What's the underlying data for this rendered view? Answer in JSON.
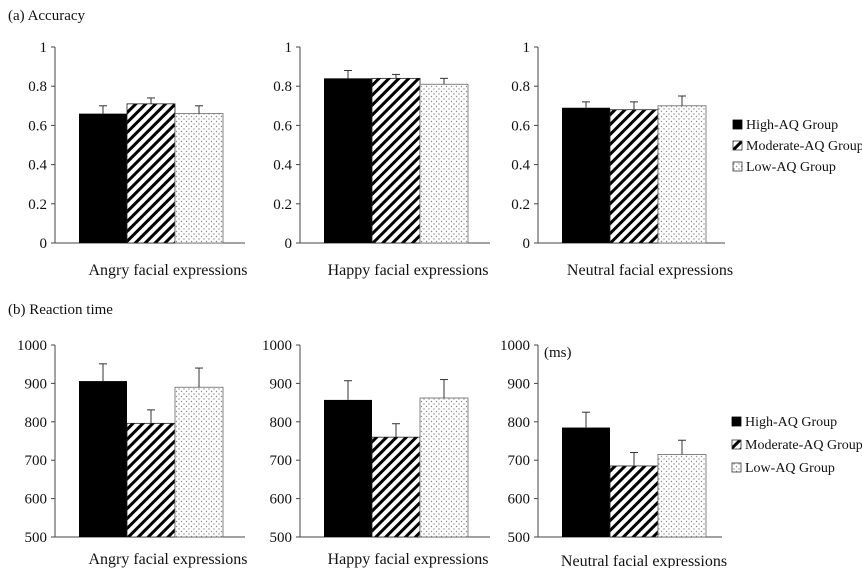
{
  "sections": {
    "accuracy_title": "(a) Accuracy",
    "rt_title": "(b) Reaction time"
  },
  "legend_items": [
    "High-AQ Group",
    "Moderate-AQ Group",
    "Low-AQ Group"
  ],
  "colors": {
    "high": "#000000",
    "moderate_stripe": "#000000",
    "low_dot": "#8a8a8a",
    "axis": "#444444"
  },
  "chart_data": [
    {
      "type": "bar",
      "section": "accuracy",
      "xlabel": "Angry facial expressions",
      "ylabel": "",
      "ylim": [
        0,
        1
      ],
      "yticks": [
        0,
        0.2,
        0.4,
        0.6,
        0.8,
        1
      ],
      "yticklabels": [
        "0",
        "0.2",
        "0.4",
        "0.6",
        "0.8",
        "1"
      ],
      "series": [
        {
          "name": "High-AQ Group",
          "value": 0.66,
          "error": 0.04
        },
        {
          "name": "Moderate-AQ Group",
          "value": 0.71,
          "error": 0.03
        },
        {
          "name": "Low-AQ Group",
          "value": 0.66,
          "error": 0.04
        }
      ],
      "unit_label": "",
      "legend": false
    },
    {
      "type": "bar",
      "section": "accuracy",
      "xlabel": "Happy facial expressions",
      "ylabel": "",
      "ylim": [
        0,
        1
      ],
      "yticks": [
        0,
        0.2,
        0.4,
        0.6,
        0.8,
        1
      ],
      "yticklabels": [
        "0",
        "0.2",
        "0.4",
        "0.6",
        "0.8",
        "1"
      ],
      "series": [
        {
          "name": "High-AQ Group",
          "value": 0.84,
          "error": 0.04
        },
        {
          "name": "Moderate-AQ Group",
          "value": 0.84,
          "error": 0.02
        },
        {
          "name": "Low-AQ Group",
          "value": 0.81,
          "error": 0.03
        }
      ],
      "unit_label": "",
      "legend": false
    },
    {
      "type": "bar",
      "section": "accuracy",
      "xlabel": "Neutral facial expressions",
      "ylabel": "",
      "ylim": [
        0,
        1
      ],
      "yticks": [
        0,
        0.2,
        0.4,
        0.6,
        0.8,
        1
      ],
      "yticklabels": [
        "0",
        "0.2",
        "0.4",
        "0.6",
        "0.8",
        "1"
      ],
      "series": [
        {
          "name": "High-AQ Group",
          "value": 0.69,
          "error": 0.03
        },
        {
          "name": "Moderate-AQ Group",
          "value": 0.68,
          "error": 0.04
        },
        {
          "name": "Low-AQ Group",
          "value": 0.7,
          "error": 0.05
        }
      ],
      "unit_label": "",
      "legend": true
    },
    {
      "type": "bar",
      "section": "reaction_time",
      "xlabel": "Angry facial expressions",
      "ylabel": "",
      "ylim": [
        500,
        1000
      ],
      "yticks": [
        500,
        600,
        700,
        800,
        900,
        1000
      ],
      "yticklabels": [
        "500",
        "600",
        "700",
        "800",
        "900",
        "1000"
      ],
      "series": [
        {
          "name": "High-AQ Group",
          "value": 906,
          "error": 45
        },
        {
          "name": "Moderate-AQ Group",
          "value": 796,
          "error": 35
        },
        {
          "name": "Low-AQ Group",
          "value": 890,
          "error": 50
        }
      ],
      "unit_label": "",
      "legend": false
    },
    {
      "type": "bar",
      "section": "reaction_time",
      "xlabel": "Happy facial expressions",
      "ylabel": "",
      "ylim": [
        500,
        1000
      ],
      "yticks": [
        500,
        600,
        700,
        800,
        900,
        1000
      ],
      "yticklabels": [
        "500",
        "600",
        "700",
        "800",
        "900",
        "1000"
      ],
      "series": [
        {
          "name": "High-AQ Group",
          "value": 857,
          "error": 50
        },
        {
          "name": "Moderate-AQ Group",
          "value": 760,
          "error": 35
        },
        {
          "name": "Low-AQ Group",
          "value": 862,
          "error": 48
        }
      ],
      "unit_label": "",
      "legend": false
    },
    {
      "type": "bar",
      "section": "reaction_time",
      "xlabel": "Neutral facial expressions",
      "ylabel": "",
      "ylim": [
        500,
        1000
      ],
      "yticks": [
        500,
        600,
        700,
        800,
        900,
        1000
      ],
      "yticklabels": [
        "500",
        "600",
        "700",
        "800",
        "900",
        "1000"
      ],
      "series": [
        {
          "name": "High-AQ Group",
          "value": 785,
          "error": 40
        },
        {
          "name": "Moderate-AQ Group",
          "value": 685,
          "error": 35
        },
        {
          "name": "Low-AQ Group",
          "value": 715,
          "error": 37
        }
      ],
      "unit_label": "(ms)",
      "legend": true
    }
  ]
}
